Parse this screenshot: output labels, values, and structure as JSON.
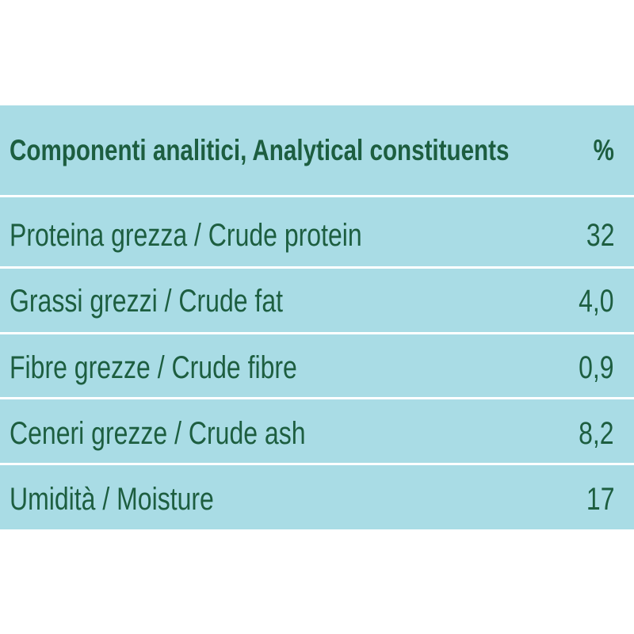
{
  "table": {
    "header": [
      "Componenti analitici, Analytical constituents",
      "%"
    ],
    "rows": [
      [
        "Proteina grezza / Crude protein",
        "32"
      ],
      [
        "Grassi grezzi / Crude fat",
        "4,0"
      ],
      [
        "Fibre grezze / Crude fibre",
        "0,9"
      ],
      [
        "Ceneri grezze / Crude ash",
        "8,2"
      ],
      [
        "Umidità / Moisture",
        "17"
      ]
    ]
  }
}
